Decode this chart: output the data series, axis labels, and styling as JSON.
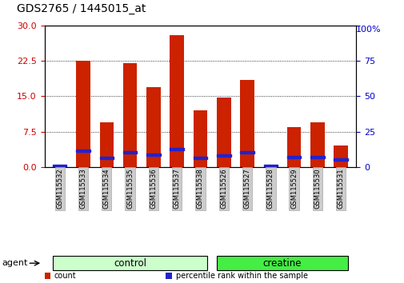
{
  "title": "GDS2765 / 1445015_at",
  "categories": [
    "GSM115532",
    "GSM115533",
    "GSM115534",
    "GSM115535",
    "GSM115536",
    "GSM115537",
    "GSM115538",
    "GSM115526",
    "GSM115527",
    "GSM115528",
    "GSM115529",
    "GSM115530",
    "GSM115531"
  ],
  "groups": [
    {
      "label": "control",
      "span": [
        0,
        7
      ],
      "facecolor": "#ccffcc",
      "edgecolor": "#000000"
    },
    {
      "label": "creatine",
      "span": [
        7,
        13
      ],
      "facecolor": "#44ee44",
      "edgecolor": "#000000"
    }
  ],
  "counts": [
    0.3,
    22.5,
    9.5,
    22.0,
    17.0,
    28.0,
    12.0,
    14.8,
    18.5,
    0.4,
    8.5,
    9.5,
    4.5
  ],
  "percentiles": [
    1.0,
    11.5,
    6.5,
    10.5,
    8.5,
    12.5,
    6.5,
    8.0,
    10.5,
    1.0,
    7.0,
    7.0,
    5.5
  ],
  "left_yticks": [
    0,
    7.5,
    15,
    22.5,
    30
  ],
  "right_yticks": [
    0,
    25,
    50,
    75,
    100
  ],
  "left_color": "#cc0000",
  "right_color": "#0000cc",
  "bar_color": "#cc2200",
  "blue_color": "#2222cc",
  "tick_label_bg": "#cccccc",
  "tick_label_edge": "#aaaaaa",
  "legend_items": [
    {
      "color": "#cc2200",
      "label": "count"
    },
    {
      "color": "#2222cc",
      "label": "percentile rank within the sample"
    }
  ],
  "ylim_left": [
    0,
    30
  ],
  "ylim_right": [
    0,
    100
  ],
  "figsize": [
    5.06,
    3.54
  ],
  "dpi": 100,
  "bar_width": 0.6,
  "xlim": [
    -0.65,
    12.65
  ]
}
